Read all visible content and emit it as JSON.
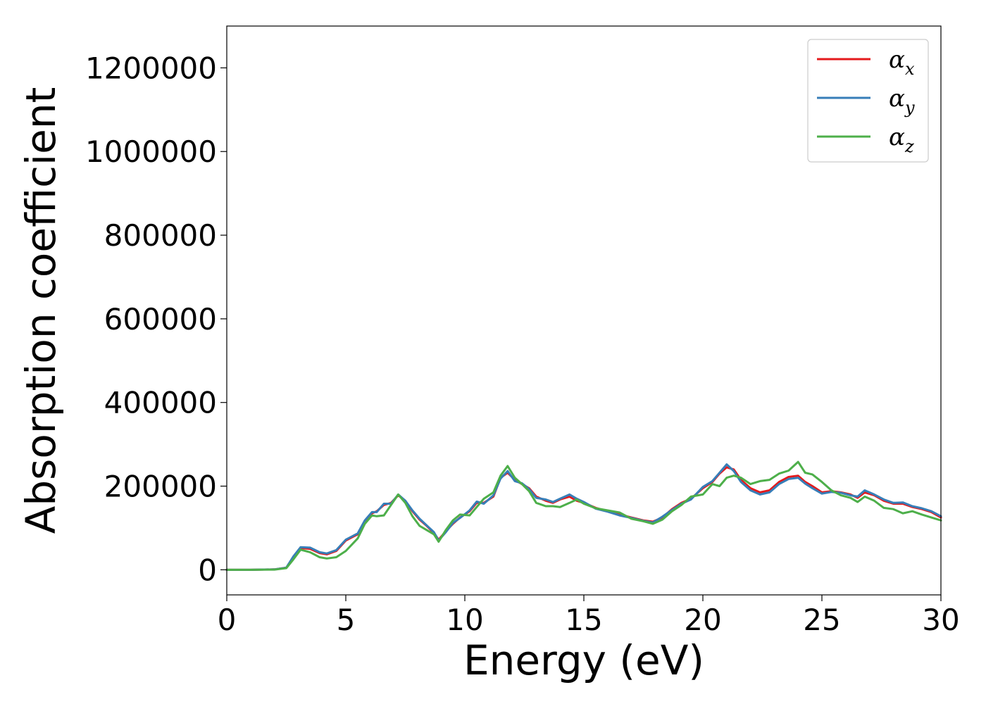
{
  "chart_data": {
    "type": "line",
    "title": "",
    "xlabel": "Energy (eV)",
    "ylabel": "Absorption coefficient",
    "xlim": [
      0,
      30
    ],
    "ylim": [
      -60000,
      1300000
    ],
    "xticks": [
      0,
      5,
      10,
      15,
      20,
      25,
      30
    ],
    "yticks": [
      0,
      200000,
      400000,
      600000,
      800000,
      1000000,
      1200000
    ],
    "grid": false,
    "legend_position": "top-right",
    "series": [
      {
        "name": "α",
        "subscript": "x",
        "color": "#e41a1c",
        "x": [
          0,
          1,
          2,
          2.5,
          2.8,
          3.1,
          3.5,
          3.9,
          4.2,
          4.6,
          5.0,
          5.5,
          5.8,
          6.1,
          6.3,
          6.6,
          6.9,
          7.2,
          7.5,
          7.8,
          8.1,
          8.4,
          8.7,
          8.9,
          9.2,
          9.5,
          9.8,
          10.2,
          10.5,
          10.8,
          11.2,
          11.5,
          11.8,
          12.1,
          12.4,
          12.7,
          13.0,
          13.4,
          13.7,
          14.0,
          14.4,
          14.7,
          15.0,
          15.5,
          16.0,
          16.5,
          17.0,
          17.5,
          17.9,
          18.3,
          18.7,
          19.1,
          19.5,
          20.0,
          20.4,
          20.7,
          21.0,
          21.3,
          21.6,
          22.0,
          22.4,
          22.8,
          23.2,
          23.6,
          24.0,
          24.3,
          24.6,
          25.0,
          25.4,
          25.8,
          26.2,
          26.5,
          26.8,
          27.2,
          27.6,
          28.0,
          28.4,
          28.8,
          29.2,
          29.6,
          30.0
        ],
        "values": [
          0,
          0,
          1000,
          5000,
          30000,
          52000,
          50000,
          40000,
          37000,
          45000,
          70000,
          85000,
          115000,
          135000,
          140000,
          155000,
          160000,
          178000,
          165000,
          140000,
          120000,
          105000,
          88000,
          72000,
          92000,
          110000,
          125000,
          140000,
          160000,
          160000,
          175000,
          220000,
          232000,
          215000,
          205000,
          195000,
          175000,
          165000,
          160000,
          168000,
          175000,
          165000,
          160000,
          148000,
          140000,
          132000,
          125000,
          118000,
          115000,
          125000,
          145000,
          160000,
          170000,
          195000,
          210000,
          230000,
          245000,
          240000,
          215000,
          195000,
          185000,
          190000,
          210000,
          222000,
          225000,
          210000,
          200000,
          185000,
          188000,
          185000,
          180000,
          172000,
          185000,
          178000,
          165000,
          158000,
          158000,
          150000,
          145000,
          138000,
          125000
        ]
      },
      {
        "name": "α",
        "subscript": "y",
        "color": "#377eb8",
        "x": [
          0,
          1,
          2,
          2.5,
          2.8,
          3.1,
          3.5,
          3.9,
          4.2,
          4.6,
          5.0,
          5.5,
          5.8,
          6.1,
          6.3,
          6.6,
          6.9,
          7.2,
          7.5,
          7.8,
          8.1,
          8.4,
          8.7,
          8.9,
          9.2,
          9.5,
          9.8,
          10.2,
          10.5,
          10.8,
          11.2,
          11.5,
          11.8,
          12.1,
          12.4,
          12.7,
          13.0,
          13.4,
          13.7,
          14.0,
          14.4,
          14.7,
          15.0,
          15.5,
          16.0,
          16.5,
          17.0,
          17.5,
          17.9,
          18.3,
          18.7,
          19.1,
          19.5,
          20.0,
          20.4,
          20.7,
          21.0,
          21.3,
          21.6,
          22.0,
          22.4,
          22.8,
          23.2,
          23.6,
          24.0,
          24.3,
          24.6,
          25.0,
          25.4,
          25.8,
          26.2,
          26.5,
          26.8,
          27.2,
          27.6,
          28.0,
          28.4,
          28.8,
          29.2,
          29.6,
          30.0
        ],
        "values": [
          0,
          0,
          1000,
          5000,
          32000,
          54000,
          53000,
          42000,
          39000,
          47000,
          72000,
          87000,
          118000,
          138000,
          138000,
          158000,
          158000,
          180000,
          165000,
          142000,
          122000,
          106000,
          90000,
          70000,
          90000,
          112000,
          124000,
          142000,
          163000,
          158000,
          178000,
          218000,
          236000,
          212000,
          207000,
          193000,
          172000,
          168000,
          162000,
          170000,
          180000,
          170000,
          162000,
          146000,
          139000,
          130000,
          124000,
          117000,
          113000,
          127000,
          143000,
          158000,
          168000,
          198000,
          212000,
          232000,
          252000,
          236000,
          210000,
          190000,
          180000,
          185000,
          205000,
          217000,
          220000,
          206000,
          195000,
          182000,
          186000,
          184000,
          178000,
          175000,
          190000,
          180000,
          168000,
          160000,
          161000,
          152000,
          147000,
          140000,
          128000
        ]
      },
      {
        "name": "α",
        "subscript": "z",
        "color": "#4daf4a",
        "x": [
          0,
          1,
          2,
          2.5,
          2.8,
          3.1,
          3.5,
          3.9,
          4.2,
          4.6,
          5.0,
          5.5,
          5.8,
          6.1,
          6.3,
          6.6,
          6.9,
          7.2,
          7.5,
          7.8,
          8.1,
          8.4,
          8.7,
          8.9,
          9.2,
          9.5,
          9.8,
          10.2,
          10.5,
          10.8,
          11.2,
          11.5,
          11.8,
          12.1,
          12.4,
          12.7,
          13.0,
          13.4,
          13.7,
          14.0,
          14.4,
          14.7,
          15.0,
          15.5,
          16.0,
          16.5,
          17.0,
          17.5,
          17.9,
          18.3,
          18.7,
          19.1,
          19.5,
          20.0,
          20.4,
          20.7,
          21.0,
          21.3,
          21.6,
          22.0,
          22.4,
          22.8,
          23.2,
          23.6,
          24.0,
          24.3,
          24.6,
          25.0,
          25.4,
          25.8,
          26.2,
          26.5,
          26.8,
          27.2,
          27.6,
          28.0,
          28.4,
          28.8,
          29.2,
          29.6,
          30.0
        ],
        "values": [
          0,
          0,
          500,
          4000,
          25000,
          48000,
          42000,
          30000,
          27000,
          30000,
          45000,
          75000,
          110000,
          130000,
          128000,
          130000,
          155000,
          180000,
          160000,
          128000,
          105000,
          95000,
          85000,
          67000,
          95000,
          118000,
          132000,
          130000,
          150000,
          170000,
          185000,
          225000,
          248000,
          220000,
          205000,
          188000,
          160000,
          152000,
          152000,
          150000,
          160000,
          168000,
          158000,
          147000,
          142000,
          137000,
          122000,
          116000,
          110000,
          120000,
          140000,
          155000,
          175000,
          180000,
          205000,
          200000,
          220000,
          225000,
          220000,
          205000,
          212000,
          215000,
          230000,
          237000,
          258000,
          232000,
          228000,
          210000,
          190000,
          178000,
          172000,
          162000,
          175000,
          165000,
          148000,
          145000,
          135000,
          140000,
          132000,
          125000,
          118000
        ]
      }
    ]
  }
}
